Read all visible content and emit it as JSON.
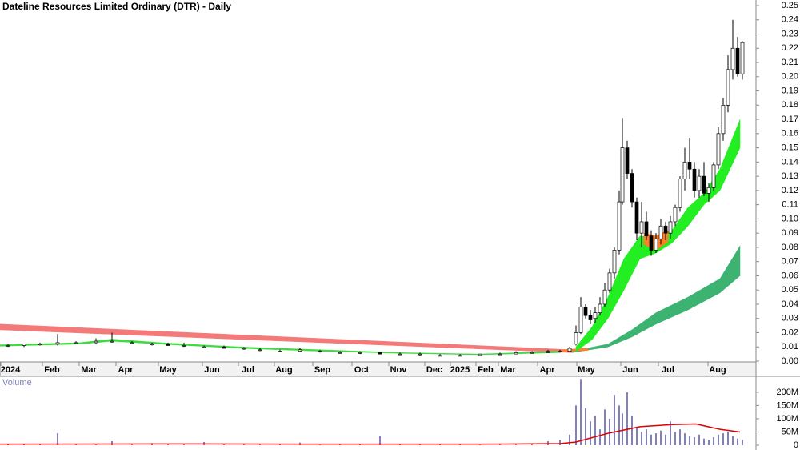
{
  "chart_data": {
    "type": "candlestick",
    "title": "Dateline Resources Limited Ordinary (DTR) - Daily",
    "xlim": [
      0,
      945
    ],
    "xticks": [
      {
        "value": 13,
        "label": "2024"
      },
      {
        "value": 65,
        "label": "Feb"
      },
      {
        "value": 111,
        "label": "Mar"
      },
      {
        "value": 157,
        "label": "Apr"
      },
      {
        "value": 210,
        "label": "May"
      },
      {
        "value": 265,
        "label": "Jun"
      },
      {
        "value": 310,
        "label": "Jul"
      },
      {
        "value": 355,
        "label": "Aug"
      },
      {
        "value": 403,
        "label": "Sep"
      },
      {
        "value": 452,
        "label": "Oct"
      },
      {
        "value": 498,
        "label": "Nov"
      },
      {
        "value": 543,
        "label": "Dec"
      },
      {
        "value": 575,
        "label": "2025"
      },
      {
        "value": 607,
        "label": "Feb"
      },
      {
        "value": 635,
        "label": "Mar"
      },
      {
        "value": 684,
        "label": "Apr"
      },
      {
        "value": 733,
        "label": "May"
      },
      {
        "value": 788,
        "label": "Jun"
      },
      {
        "value": 835,
        "label": "Jul"
      },
      {
        "value": 897,
        "label": "Aug"
      }
    ],
    "ylim": [
      0,
      0.25
    ],
    "yticks": [
      {
        "value": 0,
        "label": "0.00"
      },
      0.01,
      0.02,
      0.03,
      0.04,
      0.05,
      0.06,
      0.07,
      0.08,
      0.09,
      {
        "value": 0.1,
        "label": "0.10"
      },
      0.11,
      0.12,
      0.13,
      0.14,
      0.15,
      0.16,
      0.17,
      0.18,
      0.19,
      {
        "value": 0.2,
        "label": "0.20"
      },
      0.21,
      0.22,
      0.23,
      0.24,
      0.25
    ],
    "up_color": "#ffffff",
    "down_color": "#000000",
    "x": [
      10,
      30,
      50,
      72,
      95,
      120,
      140,
      165,
      190,
      210,
      230,
      255,
      280,
      305,
      325,
      350,
      375,
      400,
      425,
      450,
      475,
      500,
      525,
      550,
      575,
      600,
      625,
      645,
      665,
      685,
      700,
      712,
      720,
      726,
      732,
      738,
      744,
      750,
      756,
      762,
      768,
      774,
      778,
      784,
      790,
      796,
      802,
      808,
      814,
      820,
      826,
      832,
      838,
      844,
      850,
      856,
      862,
      868,
      874,
      880,
      886,
      892,
      898,
      904,
      910,
      916,
      922,
      928
    ],
    "open": [
      0.011,
      0.011,
      0.012,
      0.012,
      0.013,
      0.013,
      0.014,
      0.013,
      0.012,
      0.012,
      0.011,
      0.01,
      0.01,
      0.009,
      0.008,
      0.007,
      0.007,
      0.007,
      0.006,
      0.006,
      0.006,
      0.005,
      0.005,
      0.004,
      0.004,
      0.004,
      0.005,
      0.005,
      0.006,
      0.006,
      0.007,
      0.007,
      0.012,
      0.02,
      0.038,
      0.032,
      0.03,
      0.034,
      0.04,
      0.05,
      0.062,
      0.078,
      0.112,
      0.15,
      0.132,
      0.112,
      0.09,
      0.098,
      0.088,
      0.078,
      0.086,
      0.095,
      0.09,
      0.098,
      0.108,
      0.128,
      0.14,
      0.135,
      0.12,
      0.13,
      0.118,
      0.122,
      0.138,
      0.16,
      0.18,
      0.205,
      0.22,
      0.202
    ],
    "high": [
      0.012,
      0.012,
      0.013,
      0.019,
      0.014,
      0.016,
      0.02,
      0.014,
      0.013,
      0.013,
      0.013,
      0.011,
      0.011,
      0.01,
      0.009,
      0.008,
      0.009,
      0.008,
      0.007,
      0.007,
      0.006,
      0.006,
      0.006,
      0.005,
      0.005,
      0.005,
      0.006,
      0.007,
      0.007,
      0.008,
      0.008,
      0.01,
      0.025,
      0.045,
      0.04,
      0.036,
      0.038,
      0.045,
      0.055,
      0.065,
      0.08,
      0.12,
      0.171,
      0.155,
      0.135,
      0.115,
      0.112,
      0.105,
      0.092,
      0.09,
      0.1,
      0.098,
      0.102,
      0.11,
      0.13,
      0.15,
      0.157,
      0.14,
      0.135,
      0.14,
      0.125,
      0.14,
      0.165,
      0.185,
      0.215,
      0.24,
      0.228,
      0.225
    ],
    "low": [
      0.01,
      0.01,
      0.011,
      0.011,
      0.012,
      0.012,
      0.013,
      0.012,
      0.011,
      0.011,
      0.01,
      0.009,
      0.009,
      0.008,
      0.007,
      0.007,
      0.007,
      0.006,
      0.006,
      0.005,
      0.005,
      0.005,
      0.004,
      0.004,
      0.004,
      0.004,
      0.005,
      0.005,
      0.006,
      0.006,
      0.006,
      0.007,
      0.011,
      0.019,
      0.03,
      0.026,
      0.027,
      0.032,
      0.038,
      0.048,
      0.058,
      0.075,
      0.11,
      0.128,
      0.108,
      0.085,
      0.08,
      0.085,
      0.074,
      0.076,
      0.082,
      0.085,
      0.086,
      0.095,
      0.105,
      0.12,
      0.128,
      0.115,
      0.115,
      0.116,
      0.112,
      0.12,
      0.135,
      0.155,
      0.175,
      0.198,
      0.2,
      0.198
    ],
    "close": [
      0.011,
      0.012,
      0.012,
      0.013,
      0.013,
      0.014,
      0.014,
      0.013,
      0.012,
      0.011,
      0.011,
      0.01,
      0.009,
      0.009,
      0.008,
      0.007,
      0.008,
      0.007,
      0.006,
      0.006,
      0.005,
      0.005,
      0.005,
      0.004,
      0.004,
      0.005,
      0.005,
      0.006,
      0.006,
      0.007,
      0.007,
      0.009,
      0.02,
      0.038,
      0.032,
      0.029,
      0.034,
      0.04,
      0.05,
      0.062,
      0.078,
      0.112,
      0.15,
      0.132,
      0.112,
      0.09,
      0.098,
      0.088,
      0.078,
      0.086,
      0.095,
      0.09,
      0.098,
      0.108,
      0.128,
      0.14,
      0.135,
      0.12,
      0.13,
      0.118,
      0.122,
      0.138,
      0.16,
      0.18,
      0.205,
      0.22,
      0.202,
      0.224
    ],
    "bands": [
      {
        "color": "#f47a7a",
        "x": [
          0,
          715
        ],
        "upper": [
          0.026,
          0.008
        ],
        "lower": [
          0.022,
          0.006
        ]
      },
      {
        "color": "#3cb371",
        "x": [
          715,
          760,
          790,
          820,
          860,
          900,
          925
        ],
        "upper": [
          0.007,
          0.012,
          0.022,
          0.034,
          0.045,
          0.058,
          0.081
        ],
        "lower": [
          0.006,
          0.01,
          0.017,
          0.026,
          0.036,
          0.048,
          0.06
        ]
      },
      {
        "color": "#ff7f27",
        "x": [
          700,
          715,
          735
        ],
        "upper": [
          0.0075,
          0.0085,
          0.009
        ],
        "lower": [
          0.0065,
          0.007,
          0.0075
        ]
      },
      {
        "color": "#3ddc3d",
        "x": [
          0,
          100,
          140,
          200,
          300,
          400,
          500,
          600,
          700
        ],
        "upper": [
          0.0115,
          0.013,
          0.0155,
          0.013,
          0.01,
          0.008,
          0.006,
          0.005,
          0.007
        ],
        "lower": [
          0.0105,
          0.012,
          0.014,
          0.012,
          0.009,
          0.007,
          0.0055,
          0.0045,
          0.006
        ]
      },
      {
        "color": "#22ee22",
        "x": [
          720,
          740,
          760,
          780,
          800,
          820,
          840,
          860,
          880,
          900,
          925
        ],
        "upper": [
          0.01,
          0.024,
          0.045,
          0.072,
          0.088,
          0.087,
          0.092,
          0.108,
          0.118,
          0.135,
          0.17
        ],
        "lower": [
          0.007,
          0.015,
          0.03,
          0.05,
          0.072,
          0.076,
          0.083,
          0.095,
          0.11,
          0.12,
          0.15
        ]
      },
      {
        "color": "#ff7f27",
        "x": [
          805,
          820,
          835
        ],
        "upper": [
          0.09,
          0.088,
          0.092
        ],
        "lower": [
          0.082,
          0.078,
          0.084
        ]
      }
    ],
    "volume": {
      "title": "Volume",
      "color": "#8080c0",
      "values": [
        3000000,
        3000000,
        3000000,
        45000000,
        3000000,
        4000000,
        15000000,
        3000000,
        8000000,
        3000000,
        3000000,
        12000000,
        3000000,
        3000000,
        3000000,
        3000000,
        10000000,
        3000000,
        3000000,
        3000000,
        35000000,
        3000000,
        3000000,
        3000000,
        3000000,
        3000000,
        4000000,
        5000000,
        5000000,
        15000000,
        20000000,
        40000000,
        150000000,
        250000000,
        140000000,
        90000000,
        110000000,
        60000000,
        135000000,
        100000000,
        190000000,
        150000000,
        120000000,
        200000000,
        110000000,
        70000000,
        50000000,
        60000000,
        40000000,
        45000000,
        55000000,
        40000000,
        90000000,
        50000000,
        60000000,
        45000000,
        35000000,
        30000000,
        40000000,
        25000000,
        20000000,
        30000000,
        40000000,
        45000000,
        50000000,
        35000000,
        25000000,
        20000000
      ],
      "ylim": [
        0,
        260000000
      ],
      "yticks": [
        0,
        {
          "value": 50000000,
          "label": "50M"
        },
        {
          "value": 100000000,
          "label": "100M"
        },
        {
          "value": 150000000,
          "label": "150M"
        },
        {
          "value": 200000000,
          "label": "200M"
        }
      ],
      "ma": {
        "color": "#e00000",
        "x": [
          0,
          200,
          400,
          600,
          700,
          720,
          760,
          800,
          840,
          870,
          900,
          925
        ],
        "values": [
          4000000,
          5000000,
          4000000,
          4000000,
          6000000,
          12000000,
          45000000,
          70000000,
          78000000,
          80000000,
          60000000,
          50000000
        ]
      }
    }
  }
}
